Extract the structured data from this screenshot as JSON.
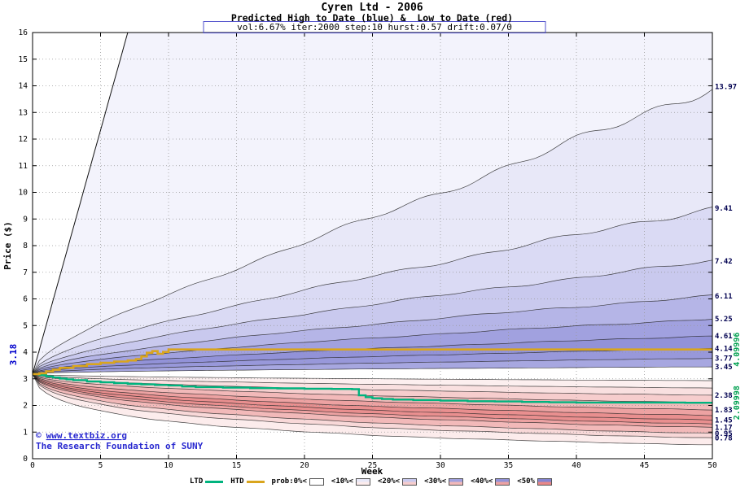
{
  "page": {
    "watermark": {
      "copyright": "©",
      "url": "www.textbiz.org",
      "org": "The Research Foundation of SUNY"
    }
  },
  "chart_data": {
    "type": "area",
    "title": "Cyren Ltd - 2006",
    "subtitle": "Predicted High to Date (blue) &  Low to Date (red)",
    "params_line": "vol:6.67% iter:2000 step:10 hurst:0.57 drift:0.07/0",
    "xlabel": "Week",
    "ylabel": "Price ($)",
    "xlim": [
      0,
      50
    ],
    "ylim": [
      0,
      16
    ],
    "x_ticks": [
      0,
      5,
      10,
      15,
      20,
      25,
      30,
      35,
      40,
      45,
      50
    ],
    "y_ticks": [
      0,
      1,
      2,
      3,
      4,
      5,
      6,
      7,
      8,
      9,
      10,
      11,
      12,
      13,
      14,
      15,
      16
    ],
    "grid": true,
    "start_price": 3.18,
    "start_price_label": "3.18",
    "curve_exponent": 0.5,
    "high_fan": {
      "direction": "up",
      "extreme_line_exit_week": 7.0,
      "quantile_ends": [
        13.97,
        9.41,
        7.42,
        6.11,
        5.25,
        4.61,
        4.14,
        3.77,
        3.45
      ],
      "edge_labels": [
        "13.97",
        "9.41",
        "7.42",
        "6.11",
        "5.25",
        "4.61",
        "4.14",
        "3.77",
        "3.45"
      ],
      "band_fills": [
        "#f3f3fc",
        "#e8e8f8",
        "#dadaf4",
        "#c9c9ee",
        "#b5b5e7",
        "#a1a1df",
        "#9292d8",
        "#9898da",
        "#a7a7e0"
      ]
    },
    "low_fan": {
      "direction": "down",
      "quantile_ends": [
        2.93,
        2.65,
        2.38,
        2.1,
        1.83,
        1.62,
        1.45,
        1.3,
        1.17,
        0.95,
        0.78,
        0.52
      ],
      "edge_labels": [
        "",
        "",
        "2.38",
        "",
        "1.83",
        "",
        "1.45",
        "",
        "1.17",
        "0.95",
        "0.78",
        ""
      ],
      "band_fills": [
        "#fcefef",
        "#f9e0e0",
        "#f6cdcd",
        "#f2b9b9",
        "#eda2a2",
        "#e98f8f",
        "#e98f8f",
        "#eda2a2",
        "#f2b9b9",
        "#f8d8d8",
        "#fcecec"
      ]
    },
    "htd_line": {
      "name": "HTD",
      "color": "#d9a51d",
      "end_value": 4.09996,
      "end_label": "4.09996",
      "points": [
        [
          0,
          3.18
        ],
        [
          0.5,
          3.21
        ],
        [
          1,
          3.28
        ],
        [
          1.5,
          3.34
        ],
        [
          2,
          3.41
        ],
        [
          3,
          3.48
        ],
        [
          4,
          3.55
        ],
        [
          5,
          3.6
        ],
        [
          6,
          3.65
        ],
        [
          7,
          3.69
        ],
        [
          7.6,
          3.74
        ],
        [
          8,
          3.84
        ],
        [
          8.4,
          3.98
        ],
        [
          8.8,
          4.04
        ],
        [
          9.2,
          3.94
        ],
        [
          9.6,
          4.01
        ],
        [
          10,
          4.1
        ],
        [
          50,
          4.1
        ]
      ]
    },
    "ltd_line": {
      "name": "LTD",
      "color": "#00b37e",
      "end_value": 2.09998,
      "end_label": "2.09998",
      "points": [
        [
          0,
          3.18
        ],
        [
          0.5,
          3.14
        ],
        [
          1,
          3.09
        ],
        [
          1.5,
          3.05
        ],
        [
          2,
          3.01
        ],
        [
          2.5,
          2.98
        ],
        [
          3,
          2.95
        ],
        [
          4,
          2.9
        ],
        [
          5,
          2.87
        ],
        [
          6,
          2.84
        ],
        [
          7,
          2.81
        ],
        [
          8,
          2.79
        ],
        [
          9,
          2.77
        ],
        [
          10,
          2.75
        ],
        [
          11,
          2.71
        ],
        [
          12,
          2.69
        ],
        [
          14,
          2.67
        ],
        [
          16,
          2.65
        ],
        [
          18,
          2.64
        ],
        [
          20,
          2.63
        ],
        [
          22,
          2.62
        ],
        [
          23.5,
          2.61
        ],
        [
          24,
          2.38
        ],
        [
          24.5,
          2.31
        ],
        [
          25,
          2.27
        ],
        [
          25.7,
          2.24
        ],
        [
          26.5,
          2.22
        ],
        [
          28,
          2.2
        ],
        [
          30,
          2.18
        ],
        [
          32,
          2.16
        ],
        [
          34,
          2.15
        ],
        [
          36,
          2.13
        ],
        [
          38,
          2.12
        ],
        [
          40,
          2.11
        ],
        [
          44,
          2.11
        ],
        [
          48,
          2.1
        ],
        [
          50,
          2.1
        ]
      ]
    },
    "legend": {
      "ltd_label": "LTD",
      "htd_label": "HTD",
      "prob_items": [
        {
          "label": "prob:0%<",
          "blue": "#ffffff",
          "red": "#ffffff"
        },
        {
          "label": "<10%<",
          "blue": "#e8e8f8",
          "red": "#fcecec"
        },
        {
          "label": "<20%<",
          "blue": "#c9c9ee",
          "red": "#f6cdcd"
        },
        {
          "label": "<30%<",
          "blue": "#a1a1df",
          "red": "#f2b9b9"
        },
        {
          "label": "<40%<",
          "blue": "#9292d8",
          "red": "#eda2a2"
        },
        {
          "label": "<50%",
          "blue": "#8484d2",
          "red": "#e98888"
        }
      ]
    },
    "colors": {
      "grid": "#999999",
      "fan_line": "#222222",
      "border": "#000000",
      "edge_label": "#000050",
      "green_label": "#00a050",
      "start_label": "#0000cc",
      "watermark": "#2a2ad0",
      "params_box": "#5050cc"
    }
  }
}
